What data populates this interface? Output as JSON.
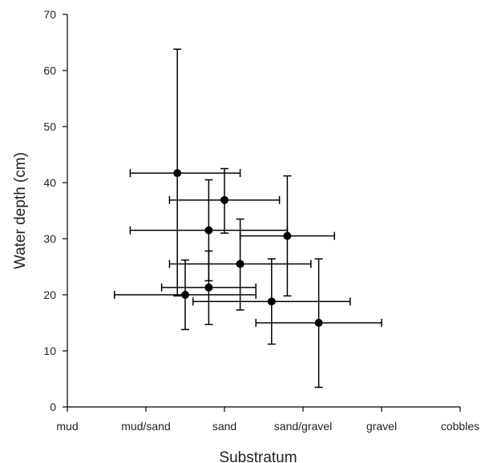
{
  "chart_data": {
    "type": "scatter",
    "title": "",
    "xlabel": "Substratum",
    "ylabel": "Water depth (cm)",
    "categories": [
      "mud",
      "mud/sand",
      "sand",
      "sand/gravel",
      "gravel",
      "cobbles"
    ],
    "xlim": [
      0,
      5
    ],
    "ylim": [
      0,
      70
    ],
    "yticks": [
      0,
      10,
      20,
      30,
      40,
      50,
      60,
      70
    ],
    "grid": false,
    "points": [
      {
        "x": 1.4,
        "y": 41.7,
        "xerr": [
          0.8,
          2.2
        ],
        "yerr": [
          19.8,
          63.8
        ]
      },
      {
        "x": 2.0,
        "y": 36.9,
        "xerr": [
          1.3,
          2.7
        ],
        "yerr": [
          31.0,
          42.5
        ]
      },
      {
        "x": 1.8,
        "y": 31.5,
        "xerr": [
          0.8,
          2.8
        ],
        "yerr": [
          22.5,
          40.5
        ]
      },
      {
        "x": 2.8,
        "y": 30.5,
        "xerr": [
          2.2,
          3.4
        ],
        "yerr": [
          19.8,
          41.2
        ]
      },
      {
        "x": 2.2,
        "y": 25.5,
        "xerr": [
          1.3,
          3.1
        ],
        "yerr": [
          17.3,
          33.5
        ]
      },
      {
        "x": 1.8,
        "y": 21.3,
        "xerr": [
          1.2,
          2.4
        ],
        "yerr": [
          14.7,
          27.8
        ]
      },
      {
        "x": 1.5,
        "y": 20.0,
        "xerr": [
          0.6,
          2.4
        ],
        "yerr": [
          13.8,
          26.2
        ]
      },
      {
        "x": 2.6,
        "y": 18.8,
        "xerr": [
          1.6,
          3.6
        ],
        "yerr": [
          11.2,
          26.4
        ]
      },
      {
        "x": 3.2,
        "y": 15.0,
        "xerr": [
          2.4,
          4.0
        ],
        "yerr": [
          3.5,
          26.4
        ]
      }
    ]
  }
}
